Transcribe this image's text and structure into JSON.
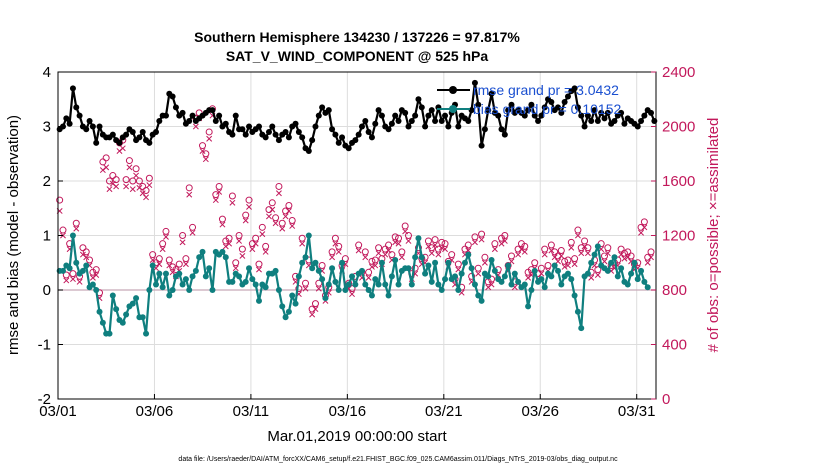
{
  "chart_data": {
    "type": "line",
    "title_line1": "Southern Hemisphere 134230 / 137226 = 97.817%",
    "title_line2": "SAT_V_WIND_COMPONENT @ 525 hPa",
    "xlabel": "Mar.01,2019 00:00:00 start",
    "ylabel_left": "rmse and bias (model - observation)",
    "ylabel_right": "# of obs: o=possible; ×=assimilated",
    "footer": "data file: /Users/raeder/DAI/ATM_forcXX/CAM6_setup/f.e21.FHIST_BGC.f09_025.CAM6assim.011/Diags_NTrS_2019-03/obs_diag_output.nc",
    "x_tick_labels": [
      "03/01",
      "03/06",
      "03/11",
      "03/16",
      "03/21",
      "03/26",
      "03/31"
    ],
    "x_tick_days": [
      0,
      5,
      10,
      15,
      20,
      25,
      30
    ],
    "xlim_days": [
      0,
      31
    ],
    "ylim_left": [
      -2,
      4
    ],
    "y_ticks_left": [
      "-2",
      "-1",
      "0",
      "1",
      "2",
      "3",
      "4"
    ],
    "ylim_right": [
      0,
      2400
    ],
    "y_ticks_right": [
      "0",
      "400",
      "800",
      "1200",
      "1600",
      "2000",
      "2400"
    ],
    "legend": {
      "rmse_label": "rmse grand pr = 3.0432",
      "bias_label": "bias grand pr = 0.10152"
    },
    "colors": {
      "rmse": "#000000",
      "bias": "#0f7f7f",
      "obs": "#c2185b",
      "grid": "#dddddd",
      "zero_line": "#c8a9b8",
      "legend_text": "#1a4fd0"
    },
    "series": [
      {
        "name": "rmse",
        "values": [
          2.95,
          3.0,
          3.15,
          3.05,
          3.7,
          3.35,
          3.2,
          3.0,
          2.95,
          3.1,
          3.0,
          2.7,
          3.0,
          2.85,
          2.8,
          2.8,
          2.85,
          2.75,
          2.7,
          2.8,
          2.85,
          2.95,
          2.9,
          2.75,
          2.8,
          2.9,
          2.75,
          2.7,
          2.85,
          2.9,
          3.1,
          3.2,
          3.2,
          3.6,
          3.55,
          3.35,
          3.2,
          3.25,
          3.05,
          3.1,
          3.2,
          3.1,
          3.15,
          3.2,
          3.25,
          3.3,
          3.3,
          3.1,
          3.2,
          3.0,
          3.05,
          2.9,
          2.85,
          3.2,
          2.95,
          2.95,
          2.85,
          3.0,
          2.9,
          2.95,
          3.0,
          2.85,
          2.8,
          2.9,
          3.0,
          2.85,
          2.75,
          2.85,
          2.9,
          2.8,
          3.0,
          3.05,
          2.9,
          2.8,
          2.6,
          2.55,
          2.75,
          3.0,
          3.2,
          3.35,
          3.25,
          3.3,
          2.95,
          2.85,
          2.7,
          2.8,
          2.65,
          2.6,
          2.7,
          2.75,
          2.85,
          3.0,
          3.1,
          2.9,
          2.8,
          3.05,
          3.3,
          3.2,
          3.0,
          2.95,
          3.05,
          3.2,
          3.1,
          3.3,
          3.25,
          3.0,
          3.1,
          3.2,
          3.5,
          3.35,
          3.0,
          3.2,
          3.3,
          3.1,
          3.35,
          3.1,
          3.2,
          3.0,
          3.25,
          3.4,
          3.0,
          3.2,
          3.15,
          3.1,
          3.3,
          3.8,
          3.4,
          2.65,
          2.95,
          3.3,
          3.6,
          3.25,
          3.2,
          2.95,
          2.85,
          3.3,
          3.4,
          3.25,
          3.3,
          3.25,
          3.2,
          3.3,
          3.4,
          3.2,
          3.1,
          3.2,
          3.35,
          3.5,
          3.45,
          3.3,
          3.35,
          3.25,
          3.45,
          3.55,
          3.65,
          3.7,
          3.35,
          3.2,
          3.0,
          3.2,
          3.1,
          3.3,
          3.1,
          3.25,
          3.15,
          3.25,
          3.05,
          3.1,
          3.2,
          3.25,
          3.05,
          3.15,
          3.1,
          3.05,
          3.0,
          3.1,
          3.2,
          3.3,
          3.25,
          3.1
        ]
      },
      {
        "name": "bias",
        "values": [
          0.35,
          0.35,
          0.45,
          0.4,
          1.0,
          0.5,
          0.3,
          0.35,
          0.45,
          0.05,
          0.1,
          0.0,
          -0.4,
          -0.6,
          -0.8,
          -0.8,
          -0.1,
          -0.35,
          -0.55,
          -0.6,
          -0.45,
          -0.3,
          -0.25,
          -0.15,
          -0.5,
          -0.5,
          -0.8,
          0.0,
          0.45,
          0.1,
          0.3,
          0.05,
          0.3,
          -0.1,
          0.0,
          0.25,
          0.3,
          0.1,
          0.2,
          0.0,
          0.25,
          0.35,
          0.6,
          0.7,
          0.25,
          0.4,
          0.0,
          0.7,
          0.65,
          0.7,
          0.6,
          0.15,
          0.15,
          0.3,
          0.25,
          0.1,
          0.15,
          0.4,
          0.2,
          0.1,
          -0.2,
          0.1,
          0.05,
          0.3,
          0.3,
          0.35,
          0.0,
          -0.3,
          -0.5,
          -0.4,
          -0.1,
          -0.25,
          0.25,
          0.5,
          0.6,
          1.0,
          0.4,
          0.5,
          0.35,
          0.2,
          -0.15,
          0.1,
          0.4,
          0.15,
          0.0,
          0.5,
          0.0,
          0.1,
          0.25,
          0.1,
          0.3,
          0.35,
          0.1,
          0.0,
          -0.1,
          0.2,
          0.1,
          0.5,
          0.1,
          -0.1,
          0.25,
          0.55,
          0.1,
          0.35,
          0.4,
          0.4,
          0.1,
          0.6,
          0.95,
          0.6,
          0.3,
          0.45,
          0.15,
          0.5,
          0.1,
          0.0,
          0.2,
          0.5,
          0.2,
          0.25,
          0.0,
          0.3,
          0.5,
          0.65,
          0.4,
          0.1,
          -0.1,
          -0.2,
          0.3,
          0.25,
          0.55,
          0.35,
          0.2,
          0.15,
          0.25,
          0.45,
          0.1,
          0.3,
          0.15,
          0.05,
          0.1,
          -0.3,
          0.0,
          0.35,
          0.15,
          0.2,
          0.05,
          0.3,
          0.25,
          0.45,
          0.35,
          0.1,
          0.25,
          0.3,
          0.2,
          -0.1,
          -0.4,
          -0.7,
          0.25,
          0.3,
          0.5,
          0.65,
          0.8,
          0.45,
          0.4,
          0.35,
          0.5,
          0.6,
          0.25,
          0.4,
          0.15,
          0.1,
          0.3,
          0.5,
          0.2,
          0.35,
          0.15,
          0.05
        ]
      },
      {
        "name": "obs_possible",
        "values": [
          1460,
          1240,
          910,
          1140,
          920,
          1290,
          900,
          1110,
          1080,
          1020,
          930,
          950,
          780,
          1740,
          1770,
          1600,
          1640,
          1610,
          1880,
          1900,
          1610,
          1750,
          1600,
          1690,
          1600,
          1560,
          1530,
          1620,
          1060,
          1000,
          1030,
          1140,
          1230,
          1020,
          970,
          950,
          990,
          1200,
          1030,
          1550,
          1260,
          2060,
          2100,
          1860,
          1800,
          1960,
          2130,
          1500,
          1560,
          1320,
          1160,
          1180,
          1490,
          1000,
          1200,
          1100,
          1350,
          1460,
          1140,
          1180,
          990,
          1260,
          1120,
          1390,
          1440,
          1330,
          1560,
          1290,
          1380,
          1420,
          1310,
          900,
          810,
          1180,
          850,
          1020,
          660,
          700,
          850,
          980,
          760,
          820,
          1080,
          1180,
          1120,
          980,
          1030,
          850,
          810,
          900,
          1130,
          930,
          1080,
          930,
          1010,
          1020,
          1110,
          1030,
          1100,
          1130,
          1060,
          1190,
          1180,
          1080,
          1270,
          1200,
          920,
          960,
          1110,
          1030,
          1040,
          1160,
          1110,
          1170,
          1100,
          1150,
          1140,
          1010,
          1060,
          880,
          990,
          820,
          1100,
          1130,
          900,
          1190,
          960,
          1210,
          1040,
          860,
          880,
          1140,
          950,
          1180,
          1200,
          980,
          1050,
          860,
          1100,
          1140,
          1120,
          930,
          950,
          1000,
          920,
          960,
          1100,
          980,
          1130,
          1080,
          1050,
          1090,
          1010,
          1020,
          1150,
          1030,
          1240,
          1110,
          1160,
          1110,
          930,
          1020,
          950,
          1140,
          1050,
          1110,
          980,
          1000,
          1020,
          1100,
          1070,
          1080,
          1050,
          990,
          1000,
          1260,
          1300,
          1040,
          1080
        ]
      },
      {
        "name": "obs_assimilated",
        "values": [
          1380,
          1200,
          870,
          1100,
          880,
          1250,
          860,
          1060,
          1040,
          980,
          890,
          910,
          740,
          1680,
          1700,
          1540,
          1580,
          1560,
          1820,
          1840,
          1560,
          1700,
          1540,
          1640,
          1550,
          1510,
          1480,
          1570,
          1020,
          960,
          990,
          1100,
          1190,
          980,
          930,
          900,
          940,
          1150,
          990,
          1500,
          1220,
          2000,
          2060,
          1820,
          1760,
          1910,
          2080,
          1460,
          1520,
          1280,
          1120,
          1140,
          1440,
          960,
          1160,
          1050,
          1310,
          1410,
          1100,
          1140,
          950,
          1210,
          1080,
          1340,
          1390,
          1290,
          1510,
          1250,
          1340,
          1380,
          1270,
          860,
          770,
          1140,
          810,
          980,
          620,
          660,
          810,
          940,
          720,
          780,
          1040,
          1140,
          1080,
          940,
          990,
          810,
          770,
          860,
          1090,
          890,
          1040,
          890,
          970,
          980,
          1070,
          990,
          1060,
          1090,
          1020,
          1150,
          1140,
          1040,
          1230,
          1160,
          880,
          920,
          1070,
          990,
          1000,
          1120,
          1070,
          1130,
          1060,
          1110,
          1100,
          970,
          1020,
          840,
          950,
          780,
          1060,
          1090,
          860,
          1150,
          920,
          1170,
          1000,
          820,
          840,
          1100,
          910,
          1140,
          1160,
          940,
          1010,
          820,
          1060,
          1100,
          1080,
          890,
          910,
          960,
          880,
          920,
          1060,
          940,
          1090,
          1040,
          1010,
          1050,
          970,
          980,
          1110,
          990,
          1200,
          1070,
          1120,
          1070,
          890,
          980,
          910,
          1100,
          1010,
          1070,
          940,
          960,
          980,
          1060,
          1030,
          1040,
          1010,
          950,
          960,
          1220,
          1260,
          1000,
          1040
        ]
      }
    ]
  }
}
